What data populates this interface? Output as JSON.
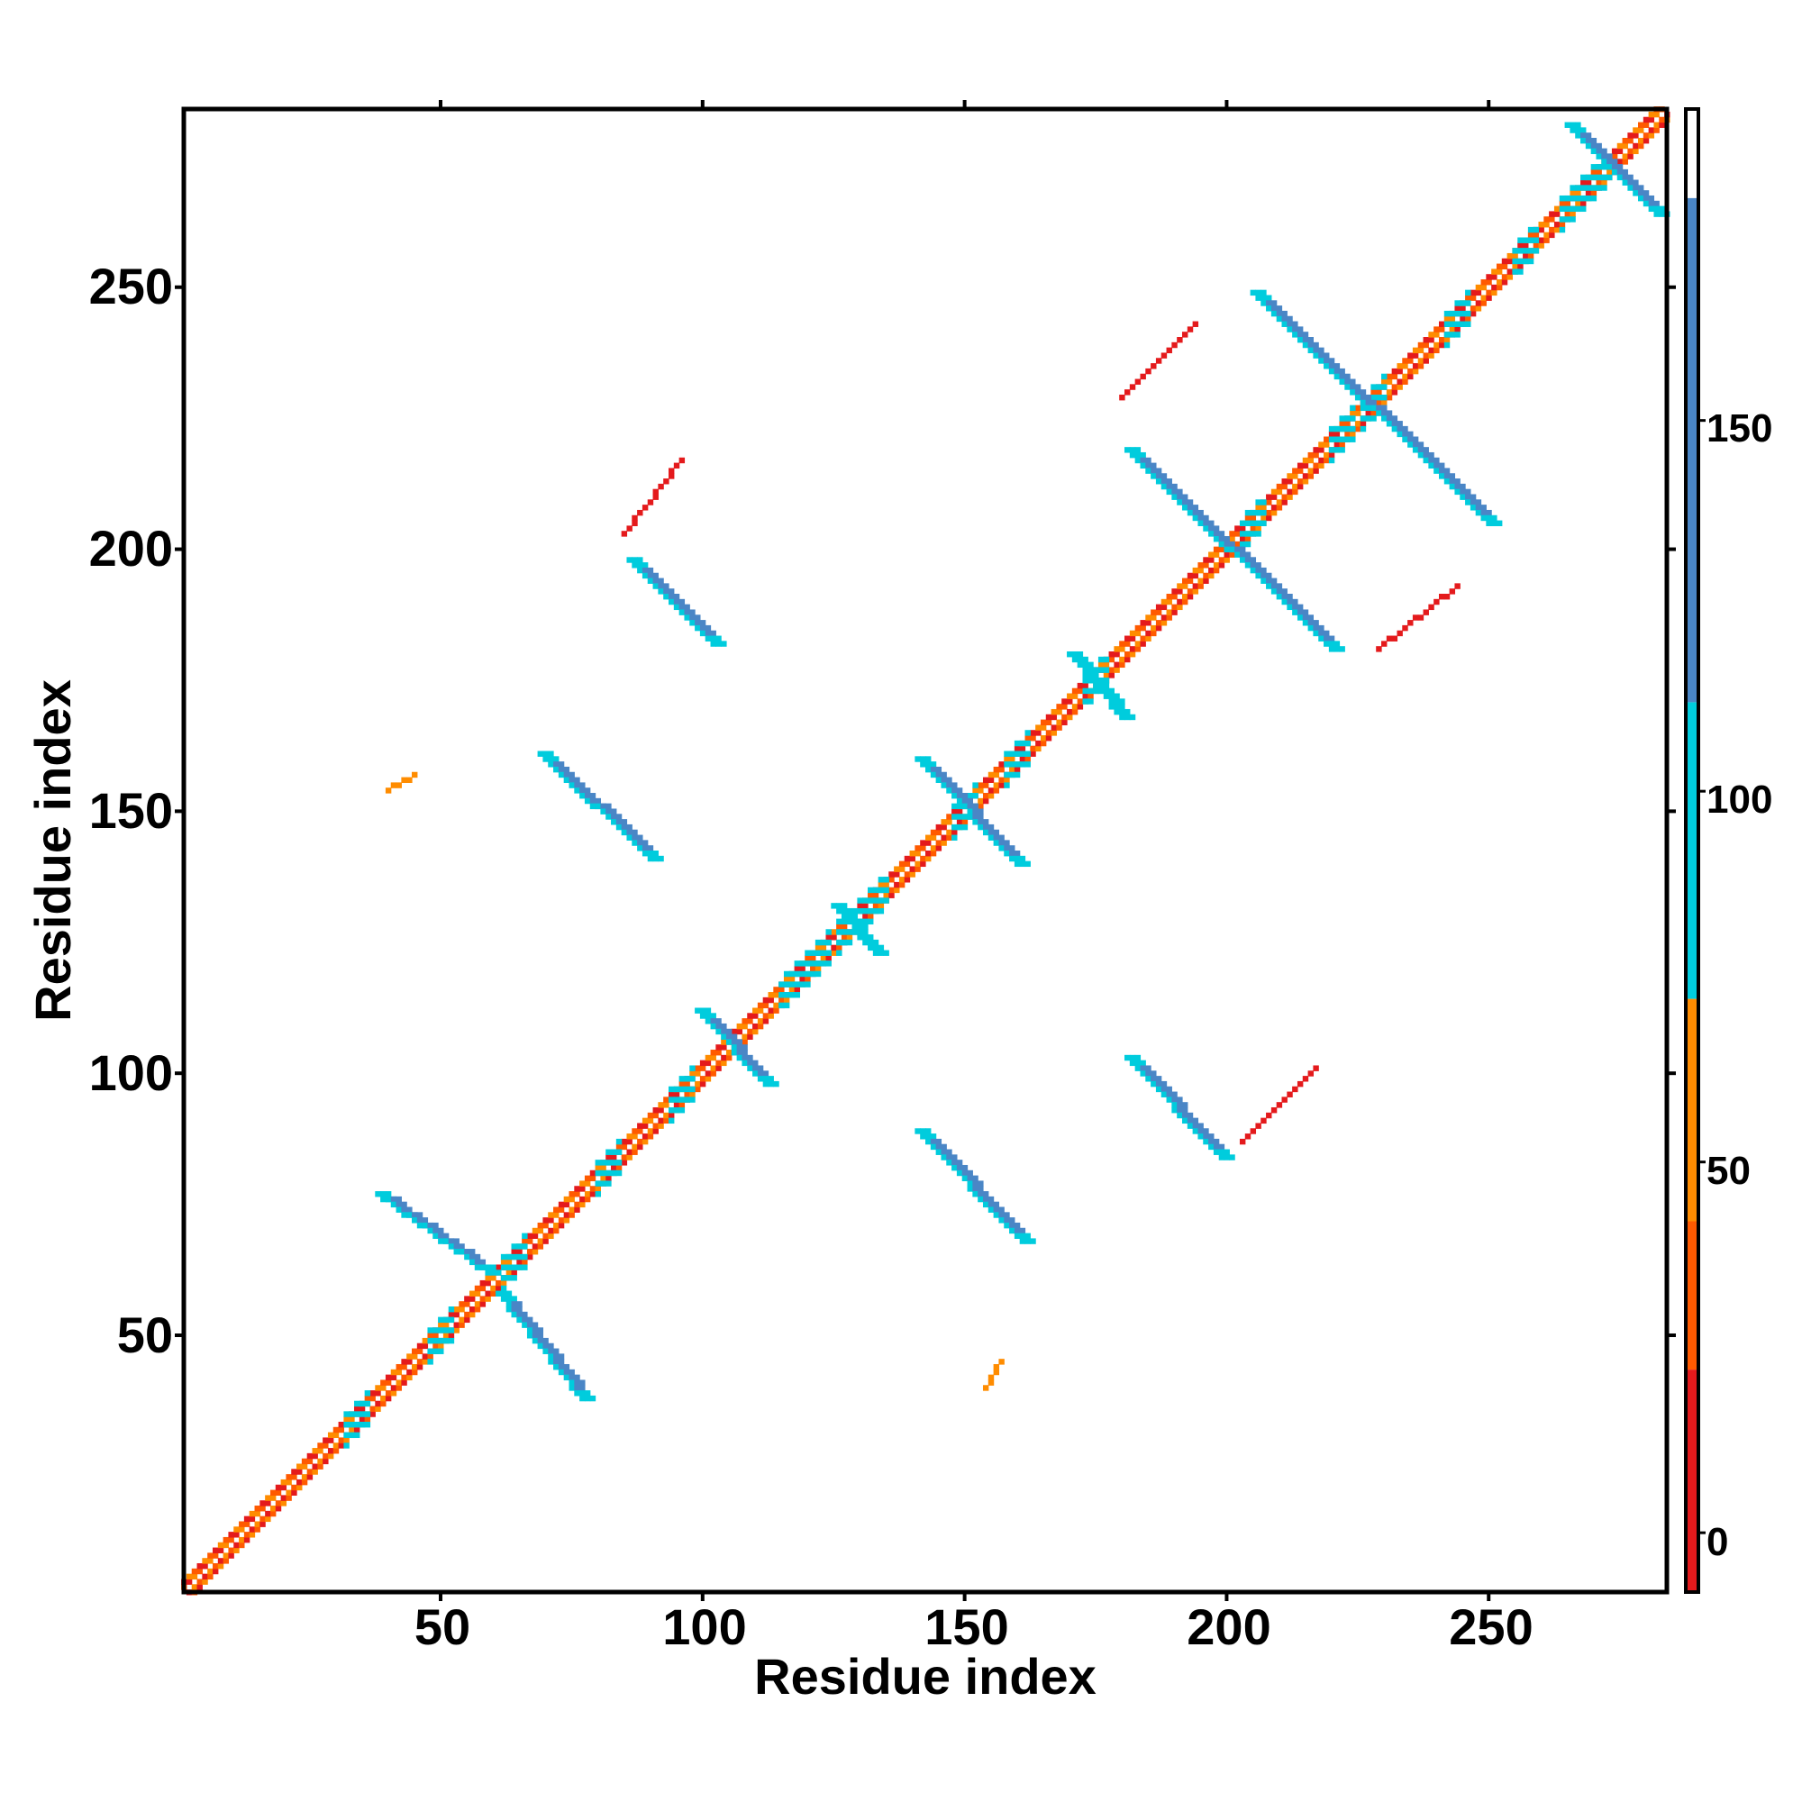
{
  "chart_data": {
    "type": "heatmap",
    "title": "",
    "xlabel": "Residue index",
    "ylabel": "Residue index",
    "xlim": [
      1,
      284
    ],
    "ylim": [
      1,
      284
    ],
    "x_ticks": [
      "50",
      "100",
      "150",
      "200",
      "250"
    ],
    "y_ticks": [
      "50",
      "100",
      "150",
      "200",
      "250"
    ],
    "grid": false,
    "colorbar": {
      "position": "right",
      "ticks": [
        "0",
        "50",
        "100",
        "150"
      ],
      "range": [
        -8,
        192
      ],
      "bands": [
        {
          "from": -8,
          "to": 22,
          "color": "#e41a1c"
        },
        {
          "from": 22,
          "to": 42,
          "color": "#ff5a00"
        },
        {
          "from": 42,
          "to": 72,
          "color": "#ff8c00"
        },
        {
          "from": 72,
          "to": 112,
          "color": "#00ccdd"
        },
        {
          "from": 112,
          "to": 180,
          "color": "#4a86c6"
        },
        {
          "from": 180,
          "to": 192,
          "color": "#ffffff"
        }
      ]
    },
    "diagonal_band": {
      "from": 1,
      "to": 284,
      "colors": [
        "#e41a1c",
        "#ff8c00",
        "#ff5a00"
      ]
    },
    "diagonal_cyan_patches": [
      34,
      50,
      64,
      82,
      96,
      117,
      122,
      128,
      133,
      150,
      160,
      175,
      205,
      222,
      228,
      244,
      257,
      266,
      271
    ],
    "contact_series": [
      {
        "x": [
          38,
          59
        ],
        "y": [
          77,
          62
        ],
        "value": 140
      },
      {
        "x": [
          61,
          77
        ],
        "y": [
          58,
          38
        ],
        "value": 140
      },
      {
        "x": [
          86,
          102
        ],
        "y": [
          198,
          182
        ],
        "value": 140
      },
      {
        "x": [
          69,
          90
        ],
        "y": [
          161,
          141
        ],
        "value": 140
      },
      {
        "x": [
          99,
          112
        ],
        "y": [
          112,
          98
        ],
        "value": 140
      },
      {
        "x": [
          141,
          160
        ],
        "y": [
          160,
          140
        ],
        "value": 140
      },
      {
        "x": [
          170,
          180
        ],
        "y": [
          180,
          168
        ],
        "value": 100
      },
      {
        "x": [
          125,
          133
        ],
        "y": [
          132,
          123
        ],
        "value": 100
      },
      {
        "x": [
          141,
          161
        ],
        "y": [
          89,
          68
        ],
        "value": 140
      },
      {
        "x": [
          181,
          199
        ],
        "y": [
          103,
          84
        ],
        "value": 140
      },
      {
        "x": [
          181,
          220
        ],
        "y": [
          219,
          181
        ],
        "value": 140
      },
      {
        "x": [
          205,
          250
        ],
        "y": [
          249,
          205
        ],
        "value": 140
      },
      {
        "x": [
          265,
          282
        ],
        "y": [
          281,
          264
        ],
        "value": 140
      },
      {
        "x": [
          85,
          96
        ],
        "y": [
          203,
          217
        ],
        "value": 20
      },
      {
        "x": [
          180,
          194
        ],
        "y": [
          229,
          243
        ],
        "value": 20
      },
      {
        "x": [
          229,
          244
        ],
        "y": [
          181,
          193
        ],
        "value": 20
      },
      {
        "x": [
          203,
          217
        ],
        "y": [
          87,
          101
        ],
        "value": 20
      },
      {
        "x": [
          40,
          45
        ],
        "y": [
          154,
          157
        ],
        "value": 60
      },
      {
        "x": [
          154,
          157
        ],
        "y": [
          40,
          45
        ],
        "value": 60
      }
    ]
  }
}
